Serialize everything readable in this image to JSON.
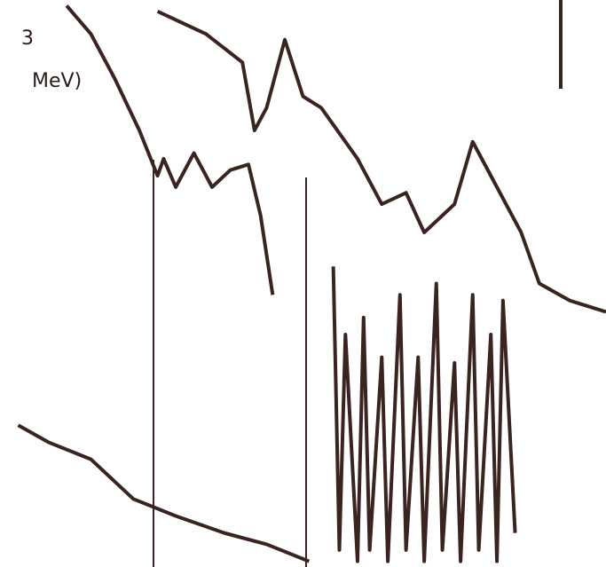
{
  "chart_data": {
    "type": "line",
    "annotations": [
      "3",
      "MeV)"
    ],
    "xlim": [
      0,
      100
    ],
    "ylim": [
      0,
      100
    ],
    "series": [
      {
        "color": "#3a2420",
        "x": [
          11,
          15,
          19,
          23,
          26,
          27,
          29,
          32,
          35,
          38,
          41,
          43,
          44,
          45
        ],
        "values": [
          99,
          94,
          86,
          77,
          69,
          72,
          67,
          73,
          67,
          70,
          71,
          62,
          55,
          48
        ]
      },
      {
        "color": "#3a2420",
        "x": [
          26,
          34,
          40,
          42,
          44,
          47,
          50,
          53,
          59,
          63,
          67,
          70,
          75,
          78,
          82,
          86,
          89,
          94,
          100
        ],
        "values": [
          98,
          94,
          89,
          77,
          81,
          93,
          83,
          81,
          72,
          64,
          66,
          59,
          64,
          75,
          67,
          59,
          50,
          47,
          45
        ]
      },
      {
        "color": "#3a2420",
        "x": [
          3,
          8,
          15,
          22,
          29,
          37,
          44,
          51
        ],
        "values": [
          25,
          22,
          19,
          12,
          9,
          6,
          4,
          1
        ]
      },
      {
        "color": "#3a2420",
        "x": [
          55,
          56,
          57,
          59,
          60,
          61,
          63,
          64,
          66,
          67,
          69,
          70,
          72,
          73,
          75,
          76,
          78,
          79,
          81,
          82,
          83,
          85
        ],
        "values": [
          53,
          3,
          41,
          1,
          44,
          3,
          37,
          1,
          48,
          3,
          37,
          1,
          50,
          3,
          36,
          1,
          48,
          3,
          41,
          1,
          47,
          6
        ]
      }
    ]
  }
}
